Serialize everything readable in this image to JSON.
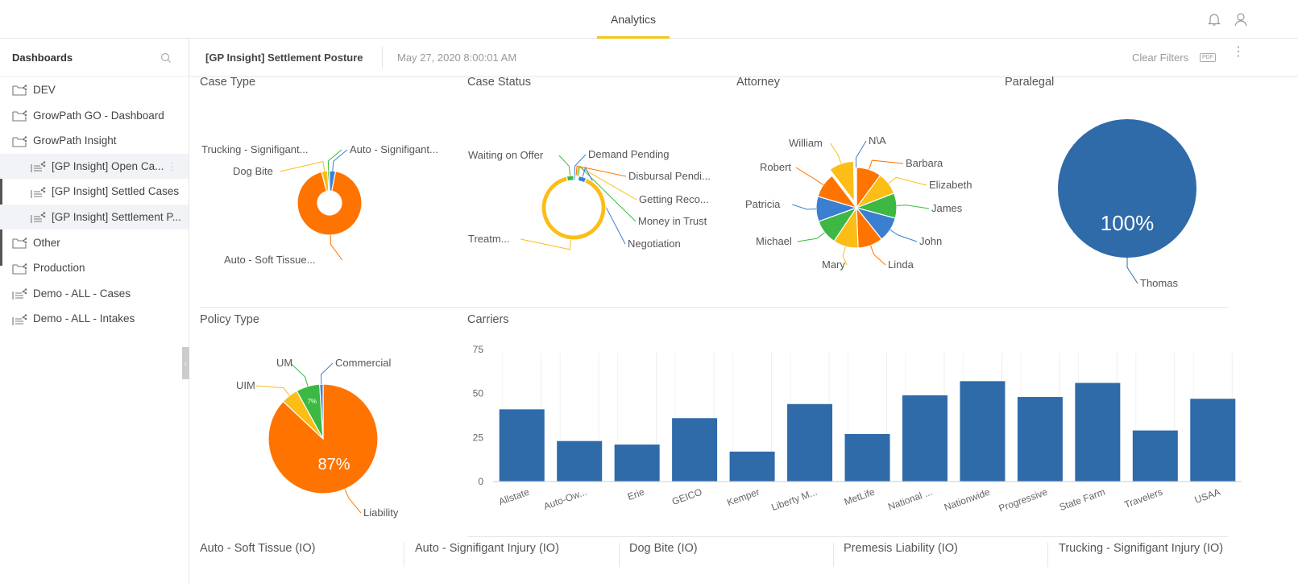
{
  "header": {
    "tab": "Analytics",
    "icons": [
      "bell-icon",
      "user-icon"
    ]
  },
  "sidebar": {
    "title": "Dashboards",
    "items": [
      {
        "label": "DEV",
        "icon": "folder-icon",
        "level": 0
      },
      {
        "label": "GrowPath GO - Dashboard",
        "icon": "folder-icon",
        "level": 0
      },
      {
        "label": "GrowPath Insight",
        "icon": "folder-open-icon",
        "level": 0
      },
      {
        "label": "[GP Insight] Open Ca...",
        "icon": "dashboard-icon",
        "level": 1,
        "hovered": true
      },
      {
        "label": "[GP Insight] Settled Cases",
        "icon": "dashboard-icon",
        "level": 1
      },
      {
        "label": "[GP Insight] Settlement P...",
        "icon": "dashboard-icon",
        "level": 1,
        "selected": true
      },
      {
        "label": "Other",
        "icon": "folder-icon",
        "level": 0
      },
      {
        "label": "Production",
        "icon": "folder-icon",
        "level": 0
      },
      {
        "label": "Demo - ALL - Cases",
        "icon": "dashboard-icon",
        "level": 0
      },
      {
        "label": "Demo - ALL - Intakes",
        "icon": "dashboard-icon",
        "level": 0
      }
    ]
  },
  "dashboard": {
    "title": "[GP Insight] Settlement Posture",
    "date": "May 27, 2020 8:00:01 AM",
    "clear_filters": "Clear Filters",
    "pdf": "PDF"
  },
  "colors": {
    "orange": "#ff7300",
    "yellow": "#fbbd16",
    "green": "#3db843",
    "blue": "#3a7fd0",
    "bar": "#2f6aa9",
    "accent": "#f5c518"
  },
  "chart_data": [
    {
      "type": "pie",
      "title": "Case Type",
      "donut": true,
      "slices": [
        {
          "label": "Auto - Signifigant...",
          "value": 3,
          "color": "#3a7fd0"
        },
        {
          "label": "Auto - Soft Tissue...",
          "value": 93,
          "color": "#ff7300"
        },
        {
          "label": "Dog Bite",
          "value": 3,
          "color": "#fbbd16"
        },
        {
          "label": "Trucking - Signifigant...",
          "value": 1,
          "color": "#3db843"
        }
      ]
    },
    {
      "type": "pie",
      "title": "Case Status",
      "donut": true,
      "slices": [
        {
          "label": "Demand Pending",
          "value": 1,
          "color": "#3a7fd0"
        },
        {
          "label": "Disbursal Pendi...",
          "value": 0.5,
          "color": "#ff7300"
        },
        {
          "label": "Getting Reco...",
          "value": 0.5,
          "color": "#fbbd16"
        },
        {
          "label": "Money in Trust",
          "value": 0.5,
          "color": "#3db843"
        },
        {
          "label": "Negotiation",
          "value": 4,
          "color": "#3a7fd0"
        },
        {
          "label": "Treatm...",
          "value": 90,
          "color": "#fbbd16"
        },
        {
          "label": "Waiting on Offer",
          "value": 3.5,
          "color": "#3db843"
        }
      ]
    },
    {
      "type": "pie",
      "title": "Attorney",
      "slices": [
        {
          "label": "Barbara",
          "value": 10,
          "color": "#ff7300"
        },
        {
          "label": "Elizabeth",
          "value": 9,
          "color": "#fbbd16"
        },
        {
          "label": "James",
          "value": 10,
          "color": "#3db843"
        },
        {
          "label": "John",
          "value": 10,
          "color": "#3a7fd0"
        },
        {
          "label": "Linda",
          "value": 10,
          "color": "#ff7300"
        },
        {
          "label": "Mary",
          "value": 10,
          "color": "#fbbd16"
        },
        {
          "label": "Michael",
          "value": 10,
          "color": "#3db843"
        },
        {
          "label": "Patricia",
          "value": 10,
          "color": "#3a7fd0"
        },
        {
          "label": "Robert",
          "value": 10,
          "color": "#ff7300"
        },
        {
          "label": "William",
          "value": 10,
          "color": "#fbbd16",
          "exploded": true
        },
        {
          "label": "N\\A",
          "value": 0.3,
          "color": "#3a7fd0"
        }
      ]
    },
    {
      "type": "pie",
      "title": "Paralegal",
      "slices": [
        {
          "label": "Thomas",
          "value": 100,
          "color": "#2f6aa9",
          "data_label": "100%"
        }
      ]
    },
    {
      "type": "pie",
      "title": "Policy Type",
      "slices": [
        {
          "label": "Liability",
          "value": 87,
          "color": "#ff7300",
          "data_label": "87%"
        },
        {
          "label": "UIM",
          "value": 5,
          "color": "#fbbd16"
        },
        {
          "label": "UM",
          "value": 7,
          "color": "#3db843",
          "data_label": "7%"
        },
        {
          "label": "Commercial",
          "value": 1,
          "color": "#3a7fd0"
        }
      ]
    },
    {
      "type": "bar",
      "title": "Carriers",
      "categories": [
        "Allstate",
        "Auto-Ow...",
        "Erie",
        "GEICO",
        "Kemper",
        "Liberty M...",
        "MetLife",
        "National ...",
        "Nationwide",
        "Progressive",
        "State Farm",
        "Travelers",
        "USAA"
      ],
      "values": [
        41,
        23,
        21,
        36,
        17,
        44,
        27,
        49,
        57,
        48,
        56,
        29,
        47
      ],
      "ylim": [
        0,
        75
      ],
      "yticks": [
        "0",
        "25",
        "50",
        "75"
      ],
      "grid": true
    }
  ],
  "bottom_tiles": [
    "Auto - Soft Tissue (IO)",
    "Auto - Signifigant Injury (IO)",
    "Dog Bite (IO)",
    "Premesis Liability (IO)",
    "Trucking - Signifigant Injury (IO)"
  ]
}
